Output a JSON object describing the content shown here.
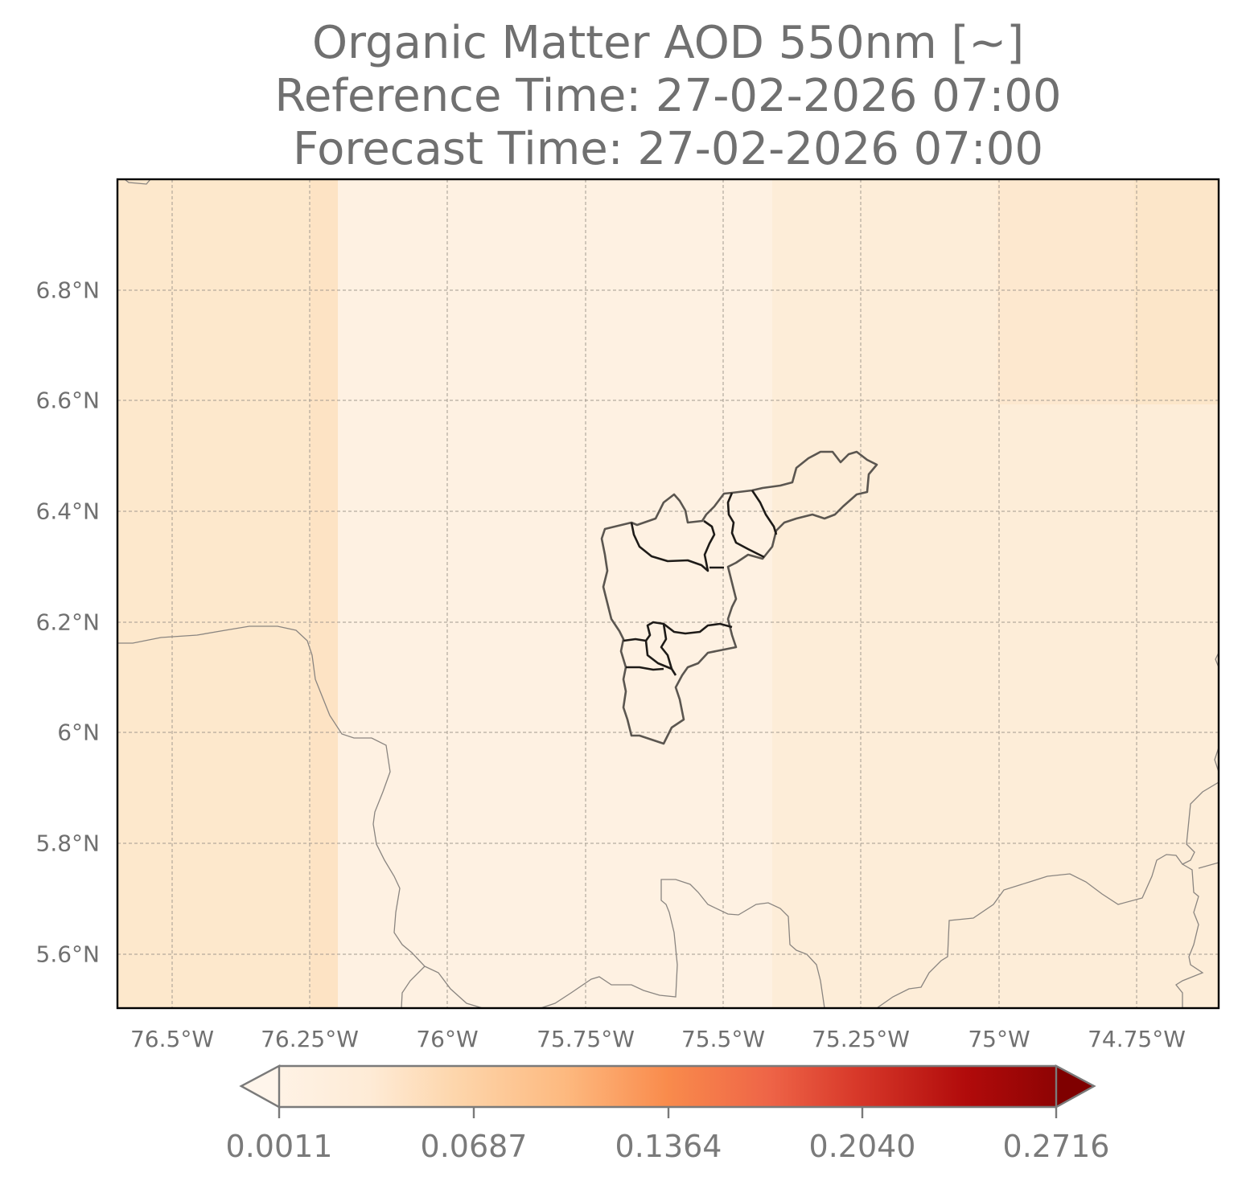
{
  "title": {
    "line1": "Organic Matter AOD 550nm [~]",
    "line2": "Reference Time: 27-02-2026 07:00",
    "line3": "Forecast Time: 27-02-2026 07:00"
  },
  "latitude_ticks": [
    "6.8°N",
    "6.6°N",
    "6.4°N",
    "6.2°N",
    "6°N",
    "5.8°N",
    "5.6°N"
  ],
  "longitude_ticks": [
    "76.5°W",
    "76.25°W",
    "76°W",
    "75.75°W",
    "75.5°W",
    "75.25°W",
    "75°W",
    "74.75°W"
  ],
  "colorbar": {
    "ticks": [
      "0.0011",
      "0.0687",
      "0.1364",
      "0.2040",
      "0.2716"
    ],
    "colormap": [
      "#fff5eb",
      "#fdd9b4",
      "#fda762",
      "#f3701b",
      "#d94801",
      "#a50f15",
      "#7f0000"
    ]
  },
  "field_colors": {
    "background": "#fdf0e0",
    "dense": "#fce8cc",
    "light": "#fef3e6"
  }
}
